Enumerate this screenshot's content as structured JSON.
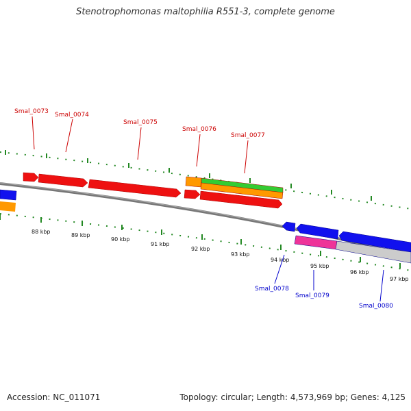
{
  "title": "Stenotrophomonas maltophilia R551-3, complete genome",
  "footer": {
    "accession": "Accession: NC_011071",
    "stats": "Topology: circular; Length: 4,573,969 bp; Genes: 4,125"
  },
  "colors": {
    "forward_gene": "#ee1111",
    "reverse_gene": "#1111ee",
    "gene_label_forward": "#cc0000",
    "gene_label_reverse": "#0000cc",
    "orange_feature": "#ff9900",
    "green_feature": "#33cc33",
    "magenta_feature": "#ee3399",
    "gray_feature": "#cccccc",
    "backbone": "#777777",
    "tick": "#228822"
  },
  "kbp_labels": [
    "88 kbp",
    "89 kbp",
    "90 kbp",
    "91 kbp",
    "92 kbp",
    "93 kbp",
    "94 kbp",
    "95 kbp",
    "96 kbp",
    "97 kbp"
  ],
  "gene_labels": [
    {
      "text": "Smal_0073",
      "strand": "forward"
    },
    {
      "text": "Smal_0074",
      "strand": "forward"
    },
    {
      "text": "Smal_0075",
      "strand": "forward"
    },
    {
      "text": "Smal_0076",
      "strand": "forward"
    },
    {
      "text": "Smal_0077",
      "strand": "forward"
    },
    {
      "text": "Smal_0078",
      "strand": "reverse"
    },
    {
      "text": "Smal_0079",
      "strand": "reverse"
    },
    {
      "text": "Smal_0080",
      "strand": "reverse"
    }
  ]
}
